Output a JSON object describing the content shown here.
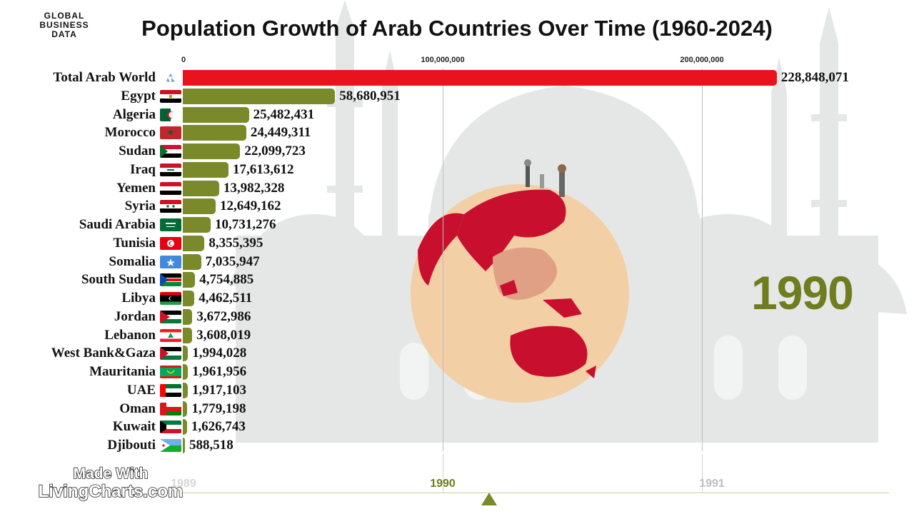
{
  "brand": {
    "line1": "GLOBAL",
    "line2": "BUSINESS DATA"
  },
  "title": "Population Growth of Arab Countries Over Time (1960-2024)",
  "current_year": "1990",
  "axis_ticks": [
    "0",
    "100,000,000",
    "200,000,000"
  ],
  "timeline": {
    "labels": [
      "1989",
      "1990",
      "1991"
    ],
    "active": "1990"
  },
  "watermark": {
    "line1": "Made With",
    "line2": "LivingCharts.com"
  },
  "colors": {
    "total_bar": "#e8131c",
    "country_bar": "#7a8a2a",
    "year_text": "#6f7d1f"
  },
  "chart_data": {
    "type": "bar",
    "orientation": "horizontal",
    "title": "Population Growth of Arab Countries Over Time (1960-2024)",
    "xlim": [
      0,
      250000000
    ],
    "x_ticks": [
      0,
      100000000,
      200000000
    ],
    "grid": true,
    "year": "1990",
    "categories": [
      "Total Arab World",
      "Egypt",
      "Algeria",
      "Morocco",
      "Sudan",
      "Iraq",
      "Yemen",
      "Syria",
      "Saudi Arabia",
      "Tunisia",
      "Somalia",
      "South Sudan",
      "Libya",
      "Jordan",
      "Lebanon",
      "West Bank&Gaza",
      "Mauritania",
      "UAE",
      "Oman",
      "Kuwait",
      "Djibouti"
    ],
    "values": [
      228848071,
      58680951,
      25482431,
      24449311,
      22099723,
      17613612,
      13982328,
      12649162,
      10731276,
      8355395,
      7035947,
      4754885,
      4462511,
      3672986,
      3608019,
      1994028,
      1961956,
      1917103,
      1779198,
      1626743,
      588518
    ],
    "value_labels": [
      "228,848,071",
      "58,680,951",
      "25,482,431",
      "24,449,311",
      "22,099,723",
      "17,613,612",
      "13,982,328",
      "12,649,162",
      "10,731,276",
      "8,355,395",
      "7,035,947",
      "4,754,885",
      "4,462,511",
      "3,672,986",
      "3,608,019",
      "1,994,028",
      "1,961,956",
      "1,917,103",
      "1,779,198",
      "1,626,743",
      "588,518"
    ],
    "flags": [
      "globe-icon",
      "egypt-flag-icon",
      "algeria-flag-icon",
      "morocco-flag-icon",
      "sudan-flag-icon",
      "iraq-flag-icon",
      "yemen-flag-icon",
      "syria-flag-icon",
      "saudi-arabia-flag-icon",
      "tunisia-flag-icon",
      "somalia-flag-icon",
      "south-sudan-flag-icon",
      "libya-flag-icon",
      "jordan-flag-icon",
      "lebanon-flag-icon",
      "palestine-flag-icon",
      "mauritania-flag-icon",
      "uae-flag-icon",
      "oman-flag-icon",
      "kuwait-flag-icon",
      "djibouti-flag-icon"
    ]
  }
}
